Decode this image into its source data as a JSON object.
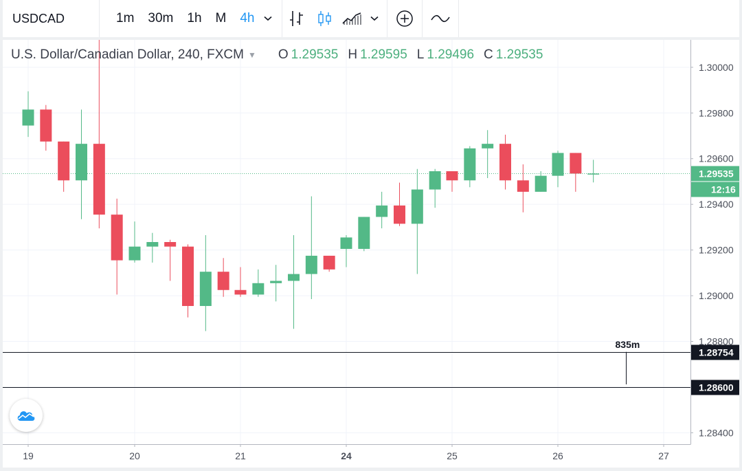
{
  "toolbar": {
    "symbol": "USDCAD",
    "intervals": [
      "1m",
      "30m",
      "1h",
      "M",
      "4h"
    ],
    "active_interval": "4h",
    "icons": [
      "chevron-down-icon",
      "bar-chart-icon",
      "candles-icon",
      "area-chart-icon",
      "chevron-down-icon",
      "add-indicator-icon",
      "compare-line-icon"
    ]
  },
  "legend": {
    "title": "U.S. Dollar/Canadian Dollar, 240, FXCM",
    "o_label": "O",
    "o": "1.29535",
    "h_label": "H",
    "h": "1.29595",
    "l_label": "L",
    "l": "1.29496",
    "c_label": "C",
    "c": "1.29535"
  },
  "colors": {
    "up": "#53b987",
    "down": "#eb4d5c",
    "accent": "#2196f3",
    "grid": "#f0f3fa"
  },
  "chart_data": {
    "type": "candlestick",
    "symbol": "USDCAD",
    "interval": "240",
    "source": "FXCM",
    "x_ticks": [
      "19",
      "20",
      "21",
      "24",
      "25",
      "26",
      "27"
    ],
    "y_ticks": [
      "1.30000",
      "1.29800",
      "1.29600",
      "1.29400",
      "1.29200",
      "1.29000",
      "1.28800",
      "1.28600",
      "1.28400"
    ],
    "ylim": [
      1.2835,
      1.3012
    ],
    "last_price": "1.29535",
    "countdown": "12:16",
    "price_lines": [
      {
        "price": 1.28754,
        "label": "1.28754"
      },
      {
        "price": 1.286,
        "label": "1.28600"
      }
    ],
    "measure_label": "835m",
    "candles": [
      {
        "day": "19",
        "slot": 0,
        "o": 1.29745,
        "h": 1.29895,
        "l": 1.29695,
        "c": 1.29815
      },
      {
        "day": "19",
        "slot": 1,
        "o": 1.29815,
        "h": 1.29835,
        "l": 1.29635,
        "c": 1.29675
      },
      {
        "day": "19",
        "slot": 2,
        "o": 1.29675,
        "h": 1.29675,
        "l": 1.29455,
        "c": 1.29505
      },
      {
        "day": "19",
        "slot": 3,
        "o": 1.29505,
        "h": 1.29815,
        "l": 1.29335,
        "c": 1.29665
      },
      {
        "day": "19",
        "slot": 4,
        "o": 1.29665,
        "h": 1.30395,
        "l": 1.29295,
        "c": 1.29355
      },
      {
        "day": "19",
        "slot": 5,
        "o": 1.29355,
        "h": 1.29425,
        "l": 1.29005,
        "c": 1.29155
      },
      {
        "day": "20",
        "slot": 0,
        "o": 1.29155,
        "h": 1.29325,
        "l": 1.29145,
        "c": 1.29215
      },
      {
        "day": "20",
        "slot": 1,
        "o": 1.29215,
        "h": 1.29275,
        "l": 1.29145,
        "c": 1.29235
      },
      {
        "day": "20",
        "slot": 2,
        "o": 1.29235,
        "h": 1.29245,
        "l": 1.29065,
        "c": 1.29215
      },
      {
        "day": "20",
        "slot": 3,
        "o": 1.29215,
        "h": 1.29225,
        "l": 1.28905,
        "c": 1.28955
      },
      {
        "day": "20",
        "slot": 4,
        "o": 1.28955,
        "h": 1.29265,
        "l": 1.28845,
        "c": 1.29105
      },
      {
        "day": "20",
        "slot": 5,
        "o": 1.29105,
        "h": 1.29165,
        "l": 1.28995,
        "c": 1.29025
      },
      {
        "day": "21",
        "slot": 0,
        "o": 1.29025,
        "h": 1.29125,
        "l": 1.28995,
        "c": 1.29005
      },
      {
        "day": "21",
        "slot": 1,
        "o": 1.29005,
        "h": 1.29115,
        "l": 1.28995,
        "c": 1.29055
      },
      {
        "day": "21",
        "slot": 2,
        "o": 1.29055,
        "h": 1.29135,
        "l": 1.28975,
        "c": 1.29065
      },
      {
        "day": "21",
        "slot": 3,
        "o": 1.29065,
        "h": 1.29265,
        "l": 1.28855,
        "c": 1.29095
      },
      {
        "day": "21",
        "slot": 4,
        "o": 1.29095,
        "h": 1.29435,
        "l": 1.28985,
        "c": 1.29175
      },
      {
        "day": "21",
        "slot": 5,
        "o": 1.29175,
        "h": 1.29175,
        "l": 1.29105,
        "c": 1.29115
      },
      {
        "day": "24",
        "slot": 0,
        "o": 1.29205,
        "h": 1.29265,
        "l": 1.29125,
        "c": 1.29255
      },
      {
        "day": "24",
        "slot": 1,
        "o": 1.29205,
        "h": 1.29345,
        "l": 1.29195,
        "c": 1.29345
      },
      {
        "day": "24",
        "slot": 2,
        "o": 1.29345,
        "h": 1.29455,
        "l": 1.29295,
        "c": 1.29395
      },
      {
        "day": "24",
        "slot": 3,
        "o": 1.29395,
        "h": 1.29495,
        "l": 1.29305,
        "c": 1.29315
      },
      {
        "day": "24",
        "slot": 4,
        "o": 1.29315,
        "h": 1.29555,
        "l": 1.29095,
        "c": 1.29465
      },
      {
        "day": "24",
        "slot": 5,
        "o": 1.29465,
        "h": 1.29555,
        "l": 1.29385,
        "c": 1.29545
      },
      {
        "day": "25",
        "slot": 0,
        "o": 1.29545,
        "h": 1.29545,
        "l": 1.29455,
        "c": 1.29505
      },
      {
        "day": "25",
        "slot": 1,
        "o": 1.29505,
        "h": 1.29655,
        "l": 1.29475,
        "c": 1.29645
      },
      {
        "day": "25",
        "slot": 2,
        "o": 1.29645,
        "h": 1.29725,
        "l": 1.29515,
        "c": 1.29665
      },
      {
        "day": "25",
        "slot": 3,
        "o": 1.29665,
        "h": 1.29705,
        "l": 1.29465,
        "c": 1.29505
      },
      {
        "day": "25",
        "slot": 4,
        "o": 1.29505,
        "h": 1.29575,
        "l": 1.29365,
        "c": 1.29455
      },
      {
        "day": "25",
        "slot": 5,
        "o": 1.29455,
        "h": 1.29545,
        "l": 1.29455,
        "c": 1.29525
      },
      {
        "day": "26",
        "slot": 0,
        "o": 1.29525,
        "h": 1.29635,
        "l": 1.29475,
        "c": 1.29625
      },
      {
        "day": "26",
        "slot": 1,
        "o": 1.29625,
        "h": 1.29625,
        "l": 1.29455,
        "c": 1.29535
      },
      {
        "day": "26",
        "slot": 2,
        "o": 1.29535,
        "h": 1.29595,
        "l": 1.29496,
        "c": 1.29535
      }
    ]
  }
}
